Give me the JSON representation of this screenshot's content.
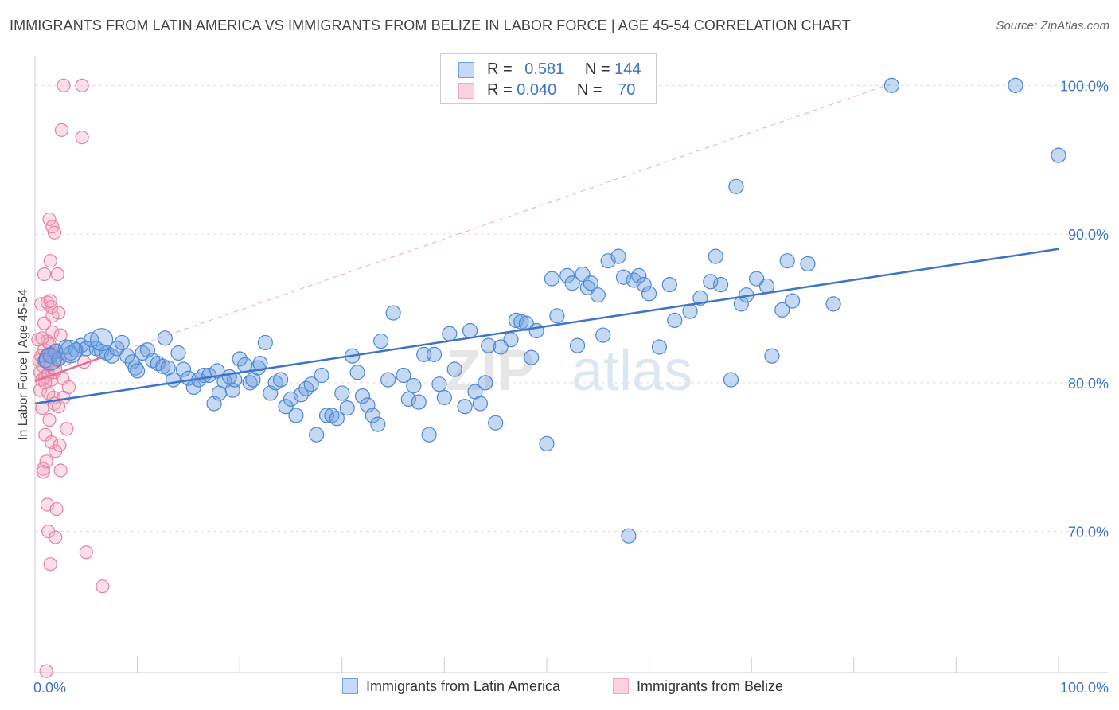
{
  "header": {
    "title": "IMMIGRANTS FROM LATIN AMERICA VS IMMIGRANTS FROM BELIZE IN LABOR FORCE | AGE 45-54 CORRELATION CHART",
    "source": "Source: ZipAtlas.com"
  },
  "watermark": {
    "zip": "ZIP",
    "atlas": "atlas"
  },
  "legend": {
    "rows": [
      {
        "r_label": "R =",
        "r_value": "0.581",
        "n_label": "N =",
        "n_value": "144",
        "color": "#8fb4e8"
      },
      {
        "r_label": "R =",
        "r_value": "0.040",
        "n_label": "N =",
        "n_value": "70",
        "color": "#f4a6be"
      }
    ]
  },
  "chart_data": {
    "type": "scatter",
    "xlabel": "",
    "ylabel": "In Labor Force | Age 45-54",
    "xlim": [
      0,
      100
    ],
    "ylim": [
      60.5,
      102
    ],
    "x_tick_labels": [
      {
        "value": 0,
        "label": "0.0%"
      },
      {
        "value": 100,
        "label": "100.0%"
      }
    ],
    "y_tick_labels": [
      {
        "value": 70,
        "label": "70.0%"
      },
      {
        "value": 80,
        "label": "80.0%"
      },
      {
        "value": 90,
        "label": "90.0%"
      },
      {
        "value": 100,
        "label": "100.0%"
      }
    ],
    "grid": "horizontal dashed",
    "legend_position": "bottom",
    "series": [
      {
        "name": "Immigrants from Latin America",
        "color": "#6fa0e0",
        "edge": "#4d86d6",
        "trend": {
          "x": [
            0,
            100
          ],
          "y": [
            78.6,
            89.0
          ]
        },
        "points": [
          [
            1,
            81.5
          ],
          [
            1.5,
            81.8
          ],
          [
            2,
            82.1
          ],
          [
            2.3,
            81.6
          ],
          [
            3,
            82.4
          ],
          [
            3.5,
            82.0
          ],
          [
            4,
            82.2
          ],
          [
            4.5,
            82.5
          ],
          [
            5,
            82.3
          ],
          [
            5.5,
            82.9
          ],
          [
            6,
            82.3
          ],
          [
            6.5,
            82.1
          ],
          [
            7,
            82.0
          ],
          [
            7.5,
            81.8
          ],
          [
            8,
            82.3
          ],
          [
            8.5,
            82.7
          ],
          [
            9,
            81.8
          ],
          [
            9.5,
            81.4
          ],
          [
            9.8,
            81.0
          ],
          [
            10,
            80.8
          ],
          [
            10.5,
            82.0
          ],
          [
            11,
            82.2
          ],
          [
            11.5,
            81.5
          ],
          [
            12,
            81.3
          ],
          [
            12.5,
            81.1
          ],
          [
            12.7,
            83.0
          ],
          [
            13,
            81.0
          ],
          [
            13.5,
            80.2
          ],
          [
            14,
            82.0
          ],
          [
            14.5,
            80.9
          ],
          [
            15,
            80.3
          ],
          [
            15.5,
            79.7
          ],
          [
            16,
            80.2
          ],
          [
            16.5,
            80.5
          ],
          [
            17,
            80.5
          ],
          [
            17.5,
            78.6
          ],
          [
            17.8,
            80.8
          ],
          [
            18,
            79.3
          ],
          [
            18.5,
            80.1
          ],
          [
            19,
            80.4
          ],
          [
            19.3,
            79.5
          ],
          [
            19.5,
            80.2
          ],
          [
            20,
            81.6
          ],
          [
            20.5,
            81.2
          ],
          [
            21,
            80.0
          ],
          [
            21.3,
            80.2
          ],
          [
            21.8,
            81.0
          ],
          [
            22,
            81.3
          ],
          [
            22.5,
            82.7
          ],
          [
            23,
            79.3
          ],
          [
            23.5,
            80.0
          ],
          [
            24,
            80.2
          ],
          [
            24.5,
            78.4
          ],
          [
            25,
            78.9
          ],
          [
            25.5,
            77.8
          ],
          [
            26,
            79.2
          ],
          [
            26.5,
            79.6
          ],
          [
            27,
            79.9
          ],
          [
            27.5,
            76.5
          ],
          [
            28,
            80.5
          ],
          [
            28.5,
            77.8
          ],
          [
            29,
            77.8
          ],
          [
            29.5,
            77.6
          ],
          [
            30,
            79.3
          ],
          [
            30.5,
            78.3
          ],
          [
            31,
            81.8
          ],
          [
            31.5,
            80.7
          ],
          [
            32,
            79.1
          ],
          [
            32.5,
            78.5
          ],
          [
            33,
            77.8
          ],
          [
            33.5,
            77.2
          ],
          [
            33.8,
            82.8
          ],
          [
            34.5,
            80.2
          ],
          [
            35,
            84.7
          ],
          [
            36,
            80.5
          ],
          [
            36.5,
            78.9
          ],
          [
            37,
            79.8
          ],
          [
            37.5,
            78.7
          ],
          [
            38,
            81.9
          ],
          [
            38.5,
            76.5
          ],
          [
            39,
            81.9
          ],
          [
            39.5,
            79.9
          ],
          [
            40,
            79.0
          ],
          [
            40.5,
            83.3
          ],
          [
            41,
            80.9
          ],
          [
            42,
            78.4
          ],
          [
            42.5,
            83.5
          ],
          [
            43,
            79.4
          ],
          [
            43.5,
            78.6
          ],
          [
            44,
            80.0
          ],
          [
            44.3,
            82.5
          ],
          [
            45,
            77.3
          ],
          [
            45.5,
            82.4
          ],
          [
            46.5,
            82.9
          ],
          [
            47,
            84.2
          ],
          [
            47.5,
            84.1
          ],
          [
            48,
            84.0
          ],
          [
            48.5,
            81.7
          ],
          [
            49,
            83.5
          ],
          [
            50,
            75.9
          ],
          [
            50.5,
            87.0
          ],
          [
            51,
            84.5
          ],
          [
            52,
            87.2
          ],
          [
            52.5,
            86.7
          ],
          [
            53,
            82.5
          ],
          [
            53.5,
            87.3
          ],
          [
            54,
            86.4
          ],
          [
            54.3,
            86.7
          ],
          [
            55,
            85.9
          ],
          [
            55.5,
            83.2
          ],
          [
            56,
            88.2
          ],
          [
            57,
            88.5
          ],
          [
            57.5,
            87.1
          ],
          [
            58,
            69.7
          ],
          [
            58.5,
            86.9
          ],
          [
            59,
            87.2
          ],
          [
            59.5,
            86.6
          ],
          [
            60,
            86.0
          ],
          [
            61,
            82.4
          ],
          [
            62,
            86.6
          ],
          [
            62.5,
            84.2
          ],
          [
            64,
            84.8
          ],
          [
            65,
            85.7
          ],
          [
            66,
            86.8
          ],
          [
            66.5,
            88.5
          ],
          [
            67,
            86.6
          ],
          [
            68,
            80.2
          ],
          [
            68.5,
            93.2
          ],
          [
            69,
            85.3
          ],
          [
            69.5,
            85.9
          ],
          [
            70.5,
            87.0
          ],
          [
            71.5,
            86.5
          ],
          [
            72,
            81.8
          ],
          [
            73,
            84.9
          ],
          [
            73.5,
            88.2
          ],
          [
            74,
            85.5
          ],
          [
            75.5,
            88.0
          ],
          [
            78,
            85.3
          ],
          [
            83.7,
            100.0
          ],
          [
            95.8,
            100.0
          ],
          [
            100,
            95.3
          ]
        ],
        "large_points": [
          [
            1.5,
            81.6
          ],
          [
            3.5,
            82.1
          ],
          [
            6.5,
            82.9
          ]
        ]
      },
      {
        "name": "Immigrants from Belize",
        "color": "#f4a6be",
        "edge": "#e87fa0",
        "trend": {
          "x": [
            0,
            6.5
          ],
          "y": [
            80.1,
            81.7
          ]
        },
        "reference_line": {
          "x": [
            0,
            84
          ],
          "y": [
            80.1,
            100.2
          ]
        },
        "points": [
          [
            0.3,
            82.9
          ],
          [
            0.4,
            81.5
          ],
          [
            0.5,
            80.7
          ],
          [
            0.5,
            79.5
          ],
          [
            0.6,
            81.8
          ],
          [
            0.6,
            85.3
          ],
          [
            0.7,
            78.3
          ],
          [
            0.7,
            80.2
          ],
          [
            0.8,
            81.1
          ],
          [
            0.8,
            74.2
          ],
          [
            0.9,
            84.0
          ],
          [
            0.9,
            87.3
          ],
          [
            0.9,
            82.2
          ],
          [
            1.0,
            76.5
          ],
          [
            1.0,
            80.4
          ],
          [
            1.1,
            81.8
          ],
          [
            1.1,
            74.7
          ],
          [
            1.2,
            85.4
          ],
          [
            1.2,
            82.8
          ],
          [
            1.2,
            71.8
          ],
          [
            1.3,
            80.6
          ],
          [
            1.3,
            79.3
          ],
          [
            1.3,
            70.0
          ],
          [
            1.4,
            91.0
          ],
          [
            1.4,
            82.6
          ],
          [
            1.4,
            77.5
          ],
          [
            1.5,
            88.2
          ],
          [
            1.5,
            81.2
          ],
          [
            1.5,
            67.8
          ],
          [
            1.6,
            85.1
          ],
          [
            1.6,
            80.2
          ],
          [
            1.6,
            76.0
          ],
          [
            1.7,
            90.5
          ],
          [
            1.7,
            84.5
          ],
          [
            1.7,
            83.4
          ],
          [
            1.8,
            82.0
          ],
          [
            1.8,
            79.0
          ],
          [
            1.9,
            90.1
          ],
          [
            1.9,
            80.7
          ],
          [
            1.9,
            78.6
          ],
          [
            2.0,
            75.4
          ],
          [
            2.0,
            69.6
          ],
          [
            2.1,
            82.2
          ],
          [
            2.1,
            71.5
          ],
          [
            2.2,
            87.3
          ],
          [
            2.2,
            81.5
          ],
          [
            2.3,
            84.7
          ],
          [
            2.3,
            78.4
          ],
          [
            2.4,
            75.8
          ],
          [
            2.5,
            83.2
          ],
          [
            2.5,
            74.1
          ],
          [
            2.6,
            97.0
          ],
          [
            2.7,
            80.3
          ],
          [
            2.8,
            100.0
          ],
          [
            2.8,
            79.0
          ],
          [
            3.0,
            81.6
          ],
          [
            3.1,
            76.9
          ],
          [
            3.3,
            79.7
          ],
          [
            4.6,
            100.0
          ],
          [
            4.6,
            96.5
          ],
          [
            4.8,
            81.4
          ],
          [
            5.0,
            68.6
          ],
          [
            6.6,
            66.3
          ],
          [
            1.1,
            60.6
          ],
          [
            0.8,
            74.0
          ],
          [
            1.5,
            85.5
          ],
          [
            1.3,
            81.9
          ],
          [
            0.7,
            83.0
          ],
          [
            2.0,
            80.9
          ],
          [
            1.0,
            80.0
          ]
        ]
      }
    ]
  }
}
